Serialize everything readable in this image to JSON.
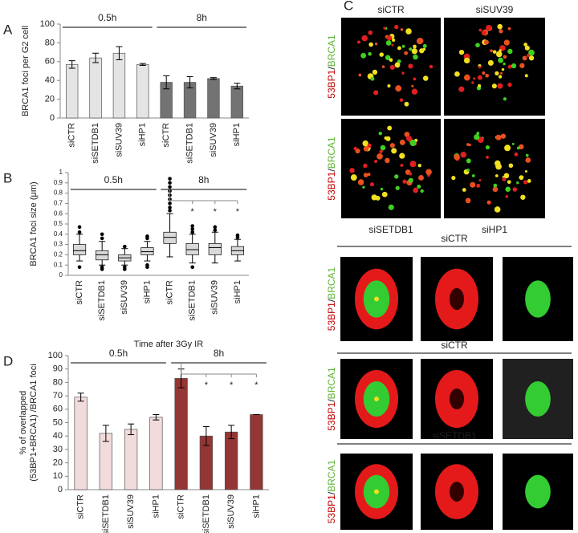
{
  "chart_data": [
    {
      "type": "bar",
      "panel": "A",
      "ylabel": "BRCA1 foci per G2 cell",
      "ylim": [
        0,
        100
      ],
      "yticks": [
        0,
        20,
        40,
        60,
        80,
        100
      ],
      "groups": [
        {
          "name": "0.5h",
          "color": "#e4e4e4",
          "categories": [
            "siCTR",
            "siSETDB1",
            "siSUV39",
            "siHP1"
          ],
          "values": [
            57,
            64,
            69,
            57
          ],
          "errors": [
            4,
            5,
            7,
            1
          ]
        },
        {
          "name": "8h",
          "color": "#737373",
          "categories": [
            "siCTR",
            "siSETDB1",
            "siSUV39",
            "siHP1"
          ],
          "values": [
            38,
            38,
            42,
            34
          ],
          "errors": [
            7,
            6,
            1,
            3
          ]
        }
      ]
    },
    {
      "type": "box",
      "panel": "B",
      "ylabel": "BRCA1 foci size (μm)",
      "ylim": [
        0,
        1
      ],
      "yticks": [
        0,
        0.1,
        0.2,
        0.3,
        0.4,
        0.5,
        0.6,
        0.7,
        0.8,
        0.9,
        1
      ],
      "groups": [
        {
          "name": "0.5h",
          "color": "#d9d9d9",
          "categories": [
            "siCTR",
            "siSETDB1",
            "siSUV39",
            "siHP1"
          ],
          "boxes": [
            {
              "min": 0.14,
              "q1": 0.2,
              "median": 0.24,
              "q3": 0.3,
              "max": 0.4,
              "outliers": [
                0.08,
                0.42,
                0.47
              ]
            },
            {
              "min": 0.1,
              "q1": 0.15,
              "median": 0.2,
              "q3": 0.24,
              "max": 0.33,
              "outliers": [
                0.06,
                0.08,
                0.36,
                0.4
              ]
            },
            {
              "min": 0.1,
              "q1": 0.14,
              "median": 0.17,
              "q3": 0.2,
              "max": 0.26,
              "outliers": [
                0.06,
                0.08,
                0.28
              ]
            },
            {
              "min": 0.14,
              "q1": 0.2,
              "median": 0.23,
              "q3": 0.27,
              "max": 0.33,
              "outliers": [
                0.08,
                0.1,
                0.36,
                0.38
              ]
            }
          ]
        },
        {
          "name": "8h",
          "color": "#d9d9d9",
          "categories": [
            "siCTR",
            "siSETDB1",
            "siSUV39",
            "siHP1"
          ],
          "marks": [
            null,
            "*",
            "*",
            "*"
          ],
          "boxes": [
            {
              "min": 0.18,
              "q1": 0.31,
              "median": 0.37,
              "q3": 0.42,
              "max": 0.6,
              "outliers": [
                0.63,
                0.66,
                0.7,
                0.74,
                0.78,
                0.82,
                0.86,
                0.9,
                0.94
              ]
            },
            {
              "min": 0.12,
              "q1": 0.2,
              "median": 0.25,
              "q3": 0.31,
              "max": 0.4,
              "outliers": [
                0.08,
                0.42,
                0.45,
                0.48
              ]
            },
            {
              "min": 0.12,
              "q1": 0.2,
              "median": 0.27,
              "q3": 0.31,
              "max": 0.42,
              "outliers": [
                0.44,
                0.47
              ]
            },
            {
              "min": 0.14,
              "q1": 0.2,
              "median": 0.24,
              "q3": 0.28,
              "max": 0.35,
              "outliers": [
                0.37,
                0.39
              ]
            }
          ]
        }
      ]
    },
    {
      "type": "bar",
      "panel": "D",
      "title": "Time after 3Gy IR",
      "ylabel": [
        "% of overlapped",
        "(53BP1+BRCA1) /BRCA1 foci"
      ],
      "ylim": [
        0,
        100
      ],
      "yticks": [
        0,
        10,
        20,
        30,
        40,
        50,
        60,
        70,
        80,
        90,
        100
      ],
      "groups": [
        {
          "name": "0.5h",
          "color": "#f2dcdb",
          "categories": [
            "siCTR",
            "siSETDB1",
            "siSUV39",
            "siHP1"
          ],
          "values": [
            69,
            42,
            45,
            54
          ],
          "errors": [
            3,
            6,
            4,
            2
          ]
        },
        {
          "name": "8h",
          "color": "#943634",
          "categories": [
            "siCTR",
            "siSETDB1",
            "siSUV39",
            "siHP1"
          ],
          "values": [
            83,
            40,
            43,
            56
          ],
          "errors": [
            7,
            7,
            5,
            0
          ],
          "marks": [
            null,
            "*",
            "*",
            "*"
          ]
        }
      ]
    }
  ],
  "panel_c": {
    "label": "C",
    "channel": {
      "red": "53BP1",
      "sep": "/",
      "green": "BRCA1"
    },
    "grid": [
      "siCTR",
      "siSUV39",
      "siSETDB1",
      "siHP1"
    ],
    "rows": [
      "siCTR",
      "siCTR",
      "siSETDB1"
    ]
  }
}
